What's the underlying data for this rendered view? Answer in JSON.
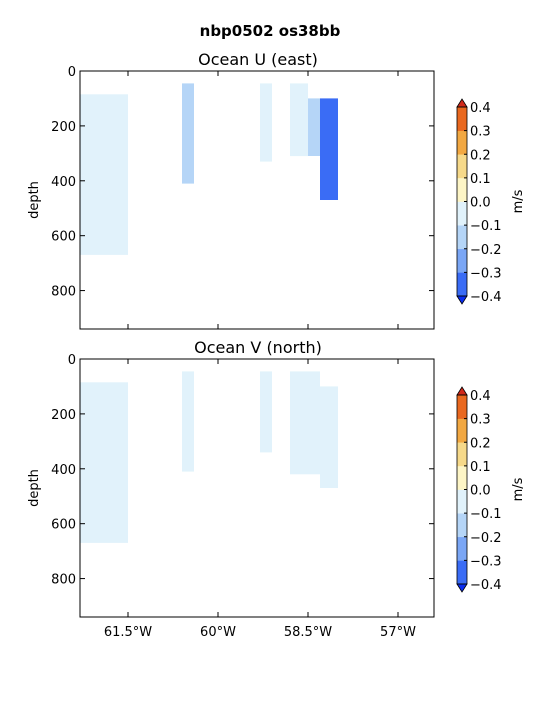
{
  "figure": {
    "suptitle": "nbp0502 os38bb"
  },
  "chart_data": [
    {
      "type": "heatmap",
      "title": "Ocean U (east)",
      "xlabel": "",
      "ylabel": "depth",
      "xlim": [
        -62.3,
        -56.4
      ],
      "ylim": [
        940,
        0
      ],
      "y_inverted": true,
      "yticks": [
        0,
        200,
        400,
        600,
        800
      ],
      "xticks_shown": false,
      "colorbar": {
        "label": "m/s",
        "ticks": [
          "0.4",
          "0.3",
          "0.2",
          "0.1",
          "0.0",
          "−0.1",
          "−0.2",
          "−0.3",
          "−0.4"
        ],
        "levels": [
          -0.4,
          -0.3,
          -0.2,
          -0.1,
          0.0,
          0.1,
          0.2,
          0.3,
          0.4
        ],
        "band_colors": [
          "#0a2df0",
          "#3a6cf5",
          "#7aa6f5",
          "#b5d5f7",
          "#e1f2fb",
          "#fdf5c6",
          "#f6d98a",
          "#f2a842",
          "#e9681f",
          "#d0291a"
        ],
        "extend": "both"
      },
      "sections": [
        {
          "lon_min": -62.3,
          "lon_max": -61.5,
          "depth_top": 85,
          "depth_bottom": 670,
          "mean_value": -0.08
        },
        {
          "lon_min": -60.6,
          "lon_max": -60.4,
          "depth_top": 45,
          "depth_bottom": 410,
          "mean_value": -0.15
        },
        {
          "lon_min": -59.3,
          "lon_max": -59.1,
          "depth_top": 45,
          "depth_bottom": 330,
          "mean_value": -0.05
        },
        {
          "lon_min": -58.8,
          "lon_max": -58.5,
          "depth_top": 45,
          "depth_bottom": 310,
          "mean_value": -0.06
        },
        {
          "lon_min": -58.5,
          "lon_max": -58.3,
          "depth_top": 100,
          "depth_bottom": 310,
          "mean_value": -0.2
        },
        {
          "lon_min": -58.3,
          "lon_max": -58.0,
          "depth_top": 100,
          "depth_bottom": 470,
          "mean_value": -0.35
        }
      ]
    },
    {
      "type": "heatmap",
      "title": "Ocean V (north)",
      "xlabel": "",
      "ylabel": "depth",
      "xlim": [
        -62.3,
        -56.4
      ],
      "ylim": [
        940,
        0
      ],
      "y_inverted": true,
      "yticks": [
        0,
        200,
        400,
        600,
        800
      ],
      "xticks": [
        -61.5,
        -60.0,
        -58.5,
        -57.0
      ],
      "xticklabels": [
        "61.5°W",
        "60°W",
        "58.5°W",
        "57°W"
      ],
      "colorbar": {
        "label": "m/s",
        "ticks": [
          "0.4",
          "0.3",
          "0.2",
          "0.1",
          "0.0",
          "−0.1",
          "−0.2",
          "−0.3",
          "−0.4"
        ],
        "levels": [
          -0.4,
          -0.3,
          -0.2,
          -0.1,
          0.0,
          0.1,
          0.2,
          0.3,
          0.4
        ],
        "band_colors": [
          "#0a2df0",
          "#3a6cf5",
          "#7aa6f5",
          "#b5d5f7",
          "#e1f2fb",
          "#fdf5c6",
          "#f6d98a",
          "#f2a842",
          "#e9681f",
          "#d0291a"
        ],
        "extend": "both"
      },
      "sections": [
        {
          "lon_min": -62.3,
          "lon_max": -61.5,
          "depth_top": 85,
          "depth_bottom": 670,
          "mean_value": -0.07
        },
        {
          "lon_min": -60.6,
          "lon_max": -60.4,
          "depth_top": 45,
          "depth_bottom": 410,
          "mean_value": -0.05
        },
        {
          "lon_min": -59.3,
          "lon_max": -59.1,
          "depth_top": 45,
          "depth_bottom": 340,
          "mean_value": -0.04
        },
        {
          "lon_min": -58.8,
          "lon_max": -58.3,
          "depth_top": 45,
          "depth_bottom": 420,
          "mean_value": -0.08
        },
        {
          "lon_min": -58.3,
          "lon_max": -58.0,
          "depth_top": 100,
          "depth_bottom": 470,
          "mean_value": -0.02
        }
      ]
    }
  ]
}
